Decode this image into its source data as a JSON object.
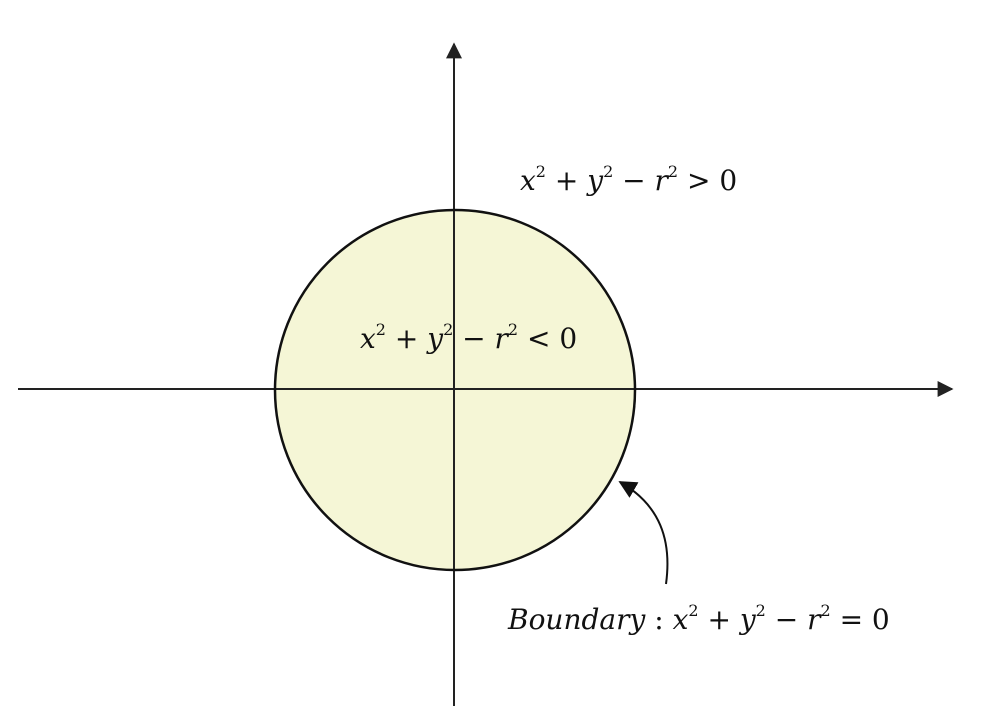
{
  "diagram": {
    "labels": {
      "outside": {
        "parts": [
          "x",
          "2",
          " + ",
          "y",
          "2",
          " − ",
          "r",
          "2",
          " > 0"
        ]
      },
      "inside": {
        "parts": [
          "x",
          "2",
          " + ",
          "y",
          "2",
          " − ",
          "r",
          "2",
          " < 0"
        ]
      },
      "boundary": {
        "prefix": "Boundary",
        "colon": " : ",
        "parts": [
          "x",
          "2",
          " + ",
          "y",
          "2",
          " − ",
          "r",
          "2",
          " = 0"
        ]
      }
    },
    "colors": {
      "disk_fill": "#f5f6d6",
      "stroke": "#111111",
      "axis": "#222222"
    }
  }
}
